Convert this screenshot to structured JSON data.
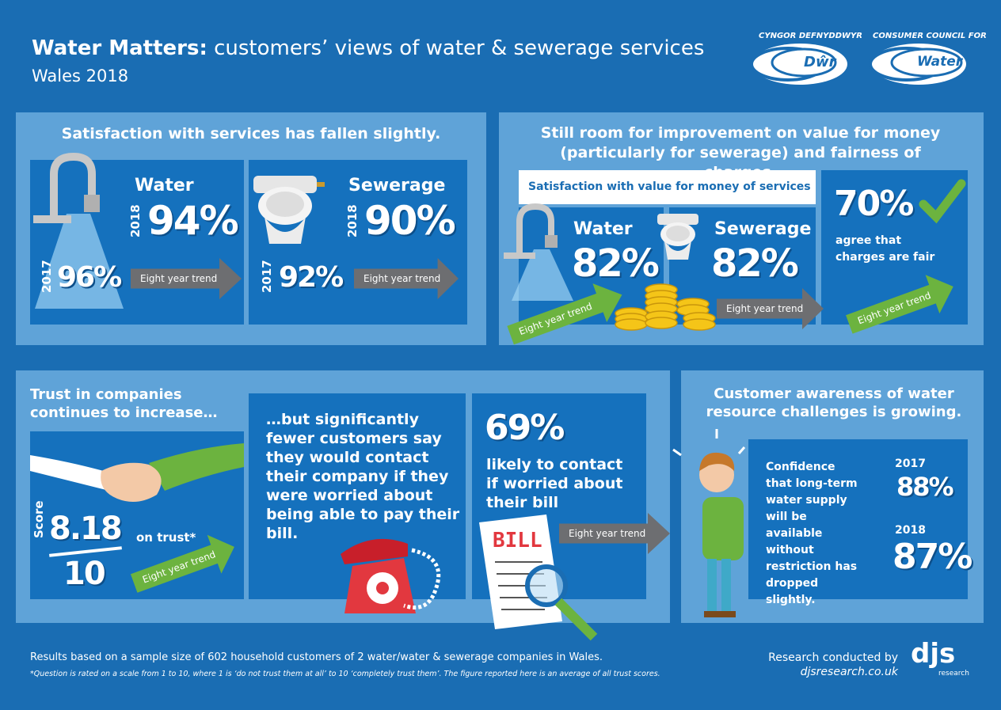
{
  "header": {
    "title_bold": "Water Matters:",
    "title_rest": "customers’ views of water & sewerage services",
    "subtitle": "Wales 2018",
    "logo_welsh_top": "CYNGOR DEFNYDDWYR",
    "logo_welsh_word": "Dŵr",
    "logo_english_top": "CONSUMER COUNCIL FOR",
    "logo_english_word": "Water"
  },
  "satisfaction": {
    "heading": "Satisfaction with services has fallen slightly.",
    "water": {
      "label": "Water",
      "year_new": "2018",
      "value_new": "94%",
      "year_old": "2017",
      "value_old": "96%",
      "trend": "Eight year trend"
    },
    "sewerage": {
      "label": "Sewerage",
      "year_new": "2018",
      "value_new": "90%",
      "year_old": "2017",
      "value_old": "92%",
      "trend": "Eight year trend"
    }
  },
  "value_for_money": {
    "heading": "Still room for improvement on value for money (particularly for sewerage) and fairness of charges.",
    "subheading": "Satisfaction with value for money of services",
    "water": {
      "label": "Water",
      "value": "82%",
      "trend": "Eight year trend"
    },
    "sewerage": {
      "label": "Sewerage",
      "value": "82%",
      "trend": "Eight year trend"
    },
    "fairness": {
      "value": "70%",
      "text": "agree that charges are fair",
      "trend": "Eight year trend"
    }
  },
  "trust": {
    "heading": "Trust in companies continues to increase…",
    "score_label": "Score",
    "score": "8.18",
    "out_of": "10",
    "caption": "on trust*",
    "trend": "Eight year trend"
  },
  "contact": {
    "text": "…but significantly fewer customers say they would contact their company if they were worried about being able to pay their bill.",
    "value": "69%",
    "caption": "likely to contact if worried about their bill",
    "bill": "BILL",
    "trend": "Eight year trend"
  },
  "awareness": {
    "heading": "Customer awareness of water resource challenges is growing.",
    "text": "Confidence that long-term water supply will be available without restriction has dropped slightly.",
    "year_old": "2017",
    "value_old": "88%",
    "year_new": "2018",
    "value_new": "87%"
  },
  "footer": {
    "note": "Results based on a sample size of 602 household customers of 2 water/water & sewerage companies in Wales.",
    "footnote": "*Question is rated on a scale from 1 to 10, where 1 is ‘do not trust them at all’ to 10 ‘completely trust them’. The figure reported here is an average of all trust scores.",
    "credit": "Research conducted by",
    "url": "djsresearch.co.uk",
    "brand": "djs",
    "brand_sub": "research"
  }
}
